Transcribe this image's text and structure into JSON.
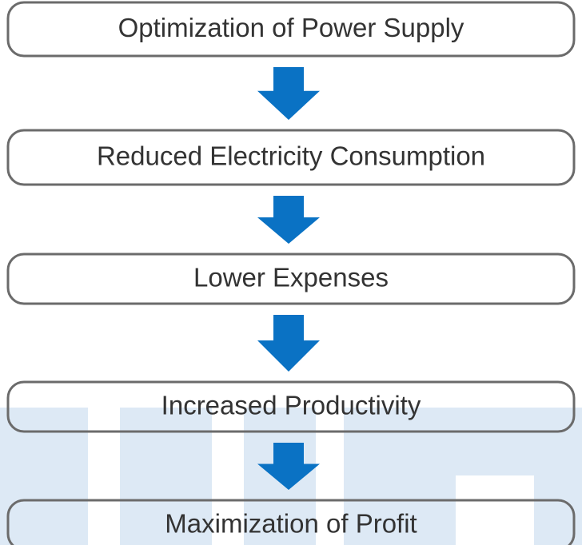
{
  "nodes": [
    {
      "label": "Optimization of Power Supply"
    },
    {
      "label": "Reduced Electricity Consumption"
    },
    {
      "label": "Lower Expenses"
    },
    {
      "label": "Increased Productivity"
    },
    {
      "label": "Maximization of Profit"
    }
  ]
}
